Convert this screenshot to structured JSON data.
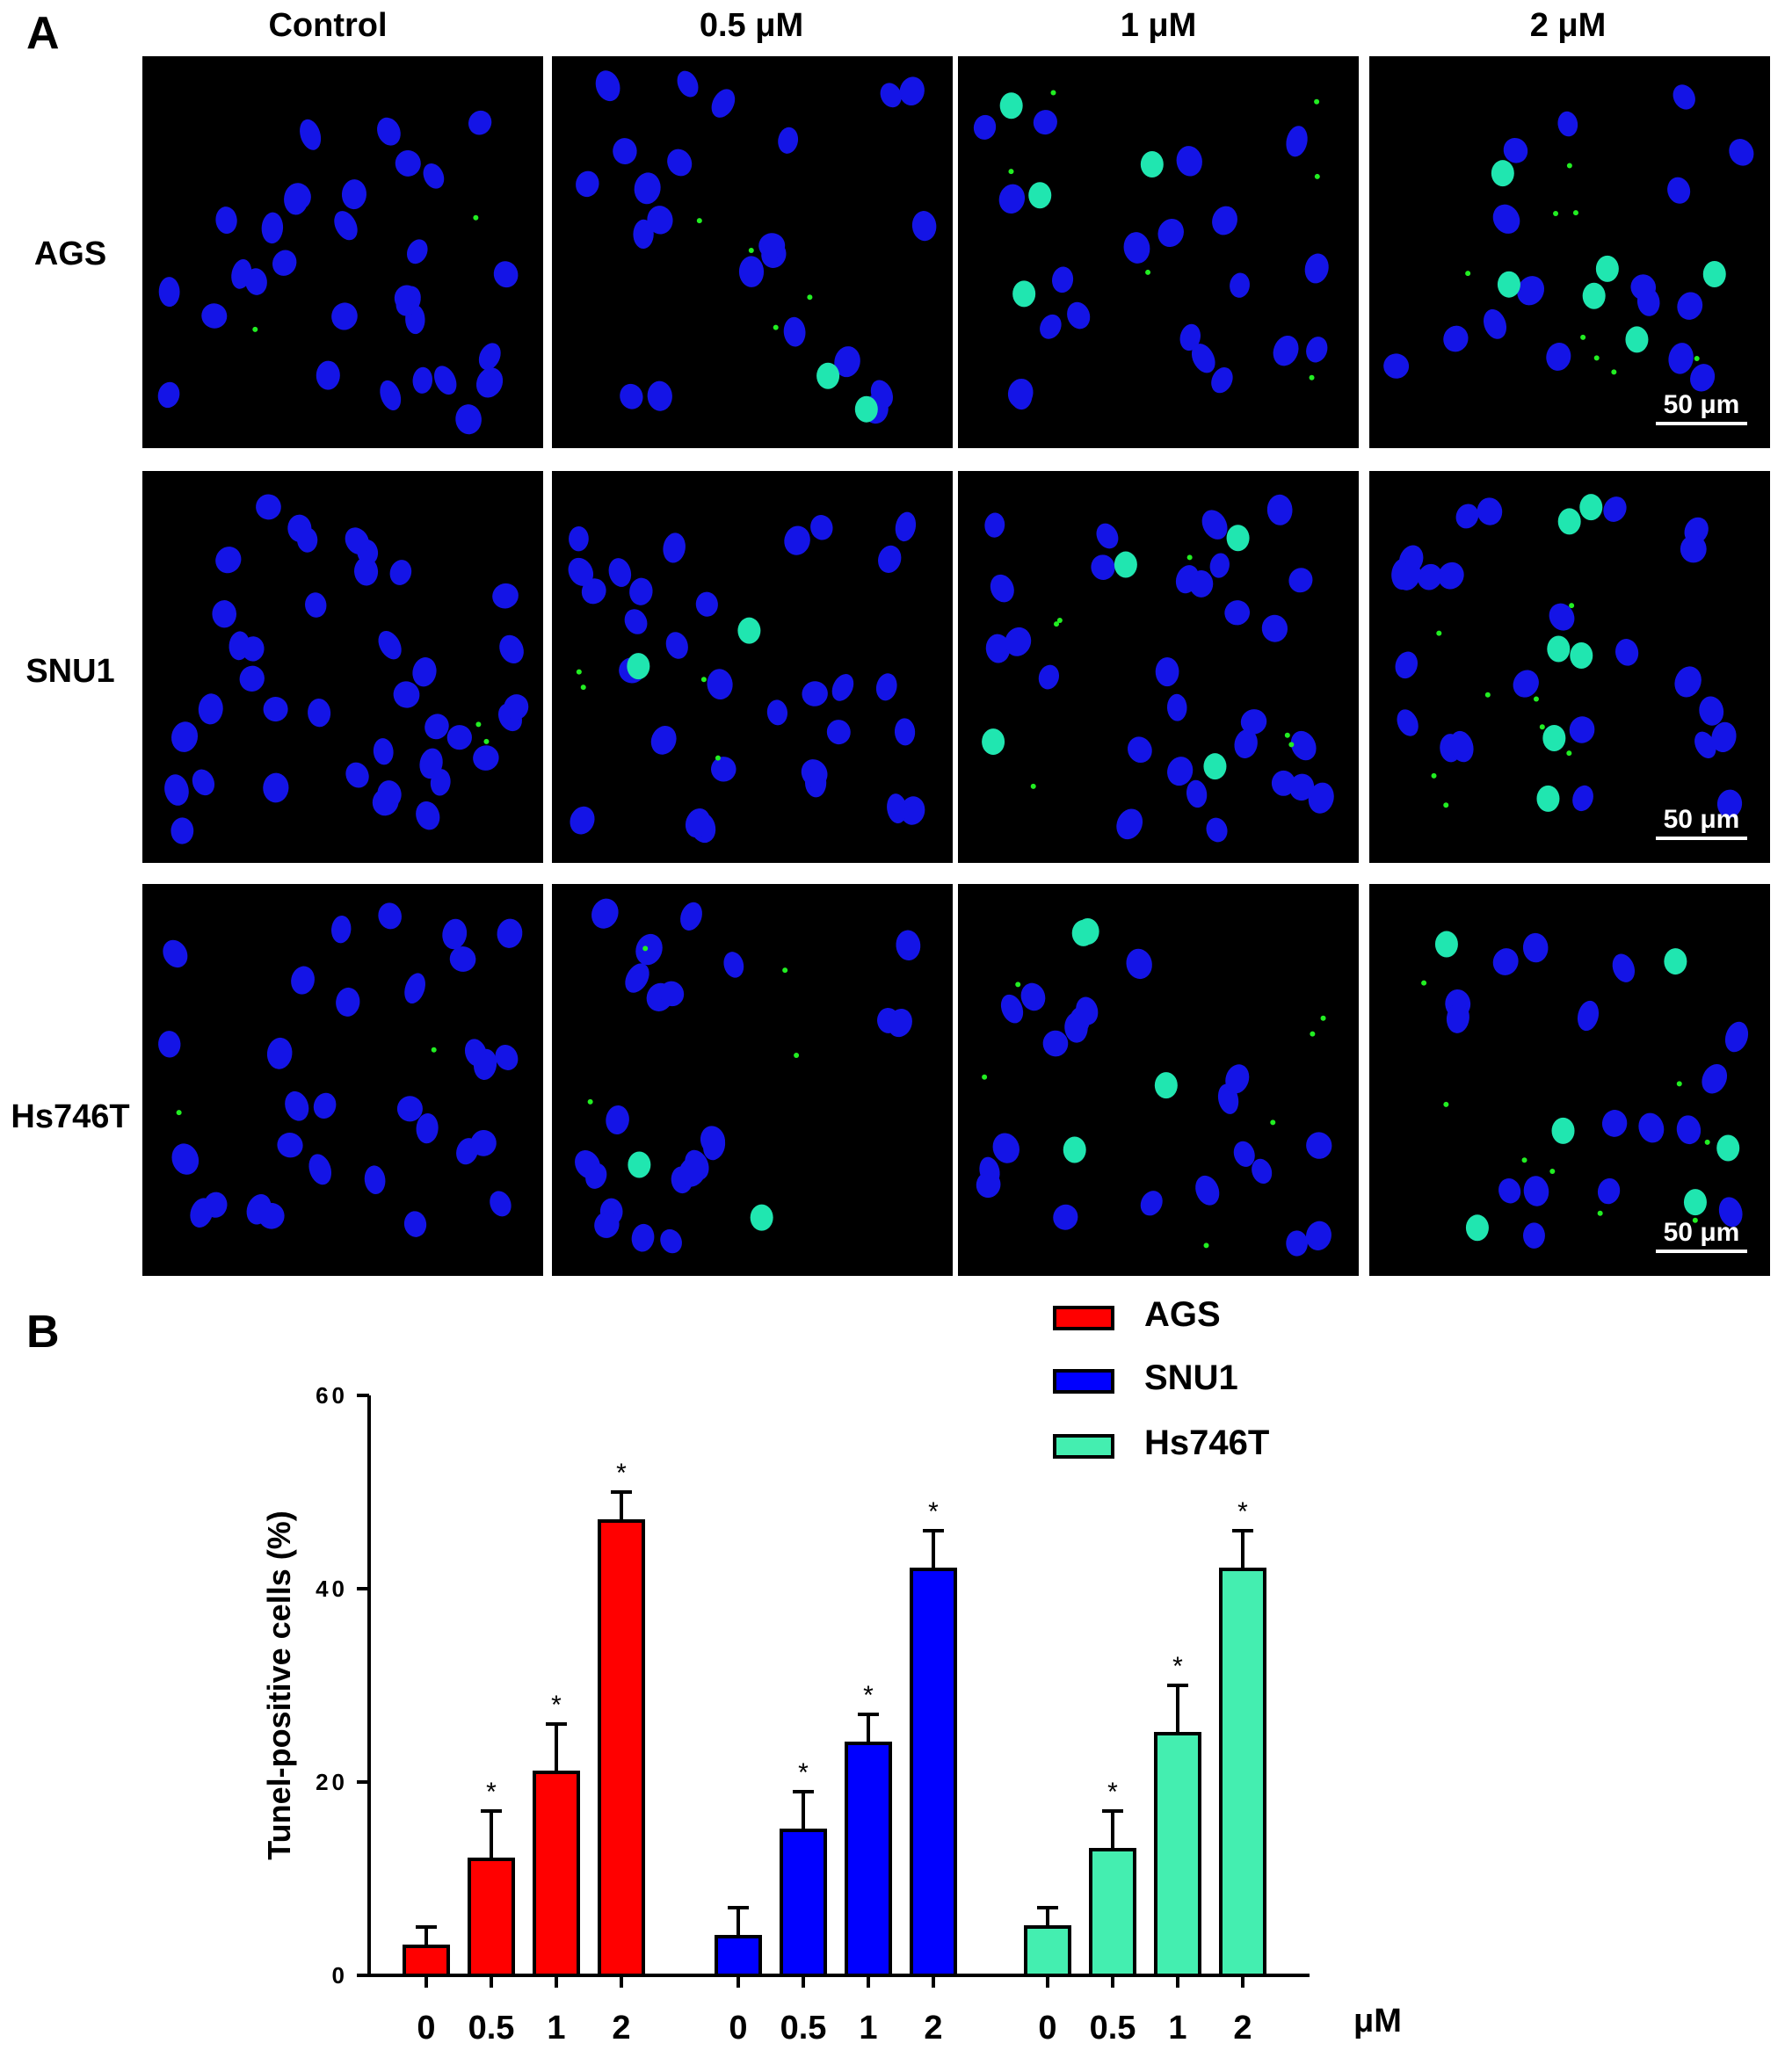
{
  "panels": {
    "a": "A",
    "b": "B"
  },
  "microscopy": {
    "columns": [
      "Control",
      "0.5 μM",
      "1 μM",
      "2 μM"
    ],
    "rows": [
      "AGS",
      "SNU1",
      "Hs746T"
    ],
    "scale_bar_label": "50 μm",
    "colors": {
      "nucleus": "#1414e6",
      "apoptotic": "#20e6b0",
      "tunel": "#22ee22",
      "background": "#000000"
    }
  },
  "chart_data": {
    "type": "bar",
    "ylabel": "Tunel-positive cells (%)",
    "xlabel": "μM",
    "ylim": [
      0,
      60
    ],
    "yticks": [
      0,
      20,
      40,
      60
    ],
    "categories": [
      "0",
      "0.5",
      "1",
      "2"
    ],
    "significance_marker": "*",
    "series": [
      {
        "name": "AGS",
        "color": "#ff0000",
        "values": [
          3,
          12,
          21,
          47
        ],
        "errors": [
          2,
          5,
          5,
          3
        ],
        "significant": [
          false,
          true,
          true,
          true
        ]
      },
      {
        "name": "SNU1",
        "color": "#0000ff",
        "values": [
          4,
          15,
          24,
          42
        ],
        "errors": [
          3,
          4,
          3,
          4
        ],
        "significant": [
          false,
          true,
          true,
          true
        ]
      },
      {
        "name": "Hs746T",
        "color": "#44eeb0",
        "values": [
          5,
          13,
          25,
          42
        ],
        "errors": [
          2,
          4,
          5,
          4
        ],
        "significant": [
          false,
          true,
          true,
          true
        ]
      }
    ]
  }
}
